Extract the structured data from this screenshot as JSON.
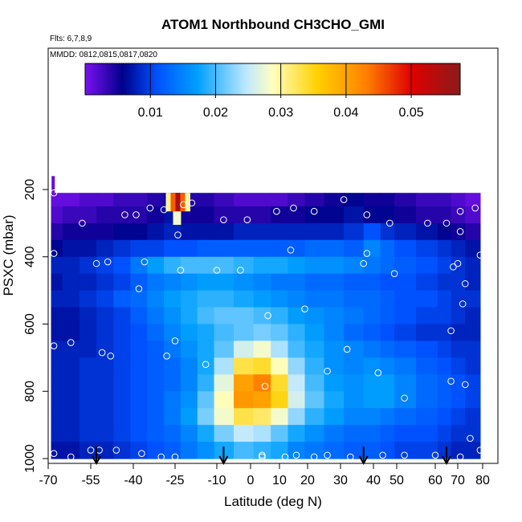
{
  "chart_data": {
    "type": "heatmap",
    "title": "ATOM1 Northbound CH3CHO_GMI",
    "flights_label": "Flts: 6,7,8,9",
    "dates_label": "MMDD: 0812,0815,0817,0820",
    "xlabel": "Latitude (deg N)",
    "ylabel": "PSXC (mbar)",
    "xlim": [
      -70,
      80
    ],
    "ylim": [
      1000,
      160
    ],
    "y_reversed": true,
    "xticks": [
      -70,
      -55,
      -40,
      -25,
      -10,
      0,
      10,
      20,
      30,
      40,
      50,
      60,
      70,
      80
    ],
    "xtick_labels": [
      "-70",
      "-55",
      "-40",
      "-25",
      "-10",
      "0",
      "10",
      "20",
      "30",
      "40",
      "50",
      "60",
      "70",
      "80"
    ],
    "yticks": [
      200,
      400,
      600,
      800,
      1000
    ],
    "ytick_labels": [
      "200",
      "400",
      "600",
      "800",
      "1000"
    ],
    "colorbar": {
      "min": 0.0,
      "max": 0.0575,
      "ticks": [
        0.01,
        0.02,
        0.03,
        0.04,
        0.05
      ],
      "tick_labels": [
        "0.01",
        "0.02",
        "0.03",
        "0.04",
        "0.05"
      ],
      "colors": [
        "#7a10f0",
        "#00008b",
        "#0050ff",
        "#00a0ff",
        "#bfe8ff",
        "#ffffc0",
        "#ffd000",
        "#ff8000",
        "#e00000",
        "#8b1a1a"
      ],
      "stops": [
        0.0,
        0.1,
        0.19,
        0.3,
        0.43,
        0.5,
        0.62,
        0.75,
        0.87,
        1.0
      ]
    },
    "lat_bins": [
      -68,
      -62,
      -56,
      -50,
      -44,
      -38,
      -32,
      -26,
      -20,
      -14,
      -8,
      -2,
      4,
      10,
      16,
      22,
      28,
      34,
      40,
      46,
      52,
      58,
      64,
      70,
      76
    ],
    "pressure_levels": [
      225,
      275,
      325,
      375,
      425,
      475,
      525,
      575,
      625,
      675,
      725,
      775,
      825,
      875,
      925,
      975
    ],
    "values": [
      [
        0.001,
        0.001,
        0.002,
        0.002,
        0.003,
        0.003,
        0.004,
        0.006,
        0.004,
        0.004,
        0.003,
        0.002,
        0.002,
        0.002,
        0.003,
        0.004,
        0.005,
        0.006,
        0.005,
        0.005,
        0.004,
        0.003,
        0.003,
        0.002,
        0.001
      ],
      [
        0.002,
        0.003,
        0.003,
        0.004,
        0.004,
        0.004,
        0.005,
        0.007,
        0.005,
        0.005,
        0.004,
        0.004,
        0.004,
        0.005,
        0.005,
        0.006,
        0.006,
        0.007,
        0.006,
        0.006,
        0.005,
        0.004,
        0.004,
        0.003,
        0.002
      ],
      [
        0.004,
        0.005,
        0.005,
        0.005,
        0.006,
        0.006,
        0.007,
        0.008,
        0.007,
        0.007,
        0.007,
        0.008,
        0.008,
        0.008,
        0.008,
        0.008,
        0.008,
        0.009,
        0.011,
        0.009,
        0.008,
        0.007,
        0.006,
        0.005,
        0.004
      ],
      [
        0.006,
        0.007,
        0.007,
        0.008,
        0.009,
        0.01,
        0.01,
        0.011,
        0.011,
        0.012,
        0.012,
        0.012,
        0.012,
        0.012,
        0.012,
        0.013,
        0.013,
        0.012,
        0.015,
        0.013,
        0.011,
        0.01,
        0.009,
        0.008,
        0.007
      ],
      [
        0.008,
        0.008,
        0.009,
        0.01,
        0.011,
        0.014,
        0.017,
        0.019,
        0.02,
        0.02,
        0.02,
        0.019,
        0.018,
        0.018,
        0.017,
        0.016,
        0.016,
        0.015,
        0.014,
        0.013,
        0.012,
        0.011,
        0.01,
        0.009,
        0.008
      ],
      [
        0.007,
        0.008,
        0.008,
        0.009,
        0.01,
        0.012,
        0.014,
        0.015,
        0.016,
        0.017,
        0.017,
        0.016,
        0.015,
        0.014,
        0.014,
        0.013,
        0.013,
        0.012,
        0.012,
        0.011,
        0.011,
        0.01,
        0.009,
        0.009,
        0.008
      ],
      [
        0.008,
        0.008,
        0.009,
        0.01,
        0.012,
        0.013,
        0.015,
        0.017,
        0.018,
        0.019,
        0.019,
        0.018,
        0.017,
        0.016,
        0.015,
        0.014,
        0.014,
        0.013,
        0.013,
        0.012,
        0.011,
        0.011,
        0.01,
        0.009,
        0.009
      ],
      [
        0.007,
        0.007,
        0.008,
        0.009,
        0.01,
        0.012,
        0.014,
        0.016,
        0.018,
        0.02,
        0.021,
        0.021,
        0.02,
        0.019,
        0.017,
        0.016,
        0.015,
        0.014,
        0.013,
        0.012,
        0.011,
        0.01,
        0.01,
        0.009,
        0.008
      ],
      [
        0.007,
        0.007,
        0.008,
        0.009,
        0.01,
        0.011,
        0.013,
        0.015,
        0.017,
        0.018,
        0.02,
        0.021,
        0.022,
        0.021,
        0.019,
        0.017,
        0.015,
        0.013,
        0.012,
        0.011,
        0.01,
        0.009,
        0.009,
        0.008,
        0.008
      ],
      [
        0.008,
        0.008,
        0.008,
        0.009,
        0.01,
        0.011,
        0.012,
        0.014,
        0.016,
        0.018,
        0.021,
        0.026,
        0.028,
        0.024,
        0.02,
        0.018,
        0.016,
        0.015,
        0.014,
        0.013,
        0.012,
        0.011,
        0.01,
        0.009,
        0.009
      ],
      [
        0.008,
        0.008,
        0.009,
        0.009,
        0.01,
        0.011,
        0.012,
        0.013,
        0.015,
        0.018,
        0.024,
        0.033,
        0.034,
        0.029,
        0.023,
        0.019,
        0.016,
        0.015,
        0.016,
        0.015,
        0.014,
        0.012,
        0.011,
        0.01,
        0.009
      ],
      [
        0.008,
        0.008,
        0.009,
        0.009,
        0.01,
        0.011,
        0.012,
        0.013,
        0.015,
        0.019,
        0.027,
        0.04,
        0.043,
        0.034,
        0.025,
        0.02,
        0.017,
        0.016,
        0.017,
        0.017,
        0.015,
        0.013,
        0.012,
        0.011,
        0.01
      ],
      [
        0.008,
        0.008,
        0.009,
        0.009,
        0.01,
        0.011,
        0.012,
        0.014,
        0.016,
        0.021,
        0.029,
        0.041,
        0.04,
        0.035,
        0.026,
        0.021,
        0.018,
        0.016,
        0.017,
        0.017,
        0.015,
        0.013,
        0.012,
        0.011,
        0.01
      ],
      [
        0.008,
        0.008,
        0.009,
        0.009,
        0.01,
        0.011,
        0.012,
        0.014,
        0.017,
        0.022,
        0.028,
        0.033,
        0.032,
        0.028,
        0.023,
        0.019,
        0.017,
        0.015,
        0.015,
        0.014,
        0.013,
        0.012,
        0.011,
        0.01,
        0.009
      ],
      [
        0.008,
        0.008,
        0.009,
        0.009,
        0.01,
        0.011,
        0.012,
        0.013,
        0.015,
        0.018,
        0.022,
        0.025,
        0.024,
        0.021,
        0.018,
        0.016,
        0.014,
        0.013,
        0.013,
        0.012,
        0.011,
        0.011,
        0.01,
        0.009,
        0.009
      ],
      [
        0.007,
        0.007,
        0.008,
        0.008,
        0.009,
        0.01,
        0.011,
        0.012,
        0.014,
        0.016,
        0.018,
        0.02,
        0.019,
        0.018,
        0.015,
        0.014,
        0.013,
        0.012,
        0.012,
        0.011,
        0.01,
        0.01,
        0.009,
        0.008,
        0.008
      ]
    ],
    "hotspot": {
      "lat": -24,
      "pressure_range": [
        210,
        265
      ],
      "value": 0.055
    },
    "samples": [
      [
        -68,
        210
      ],
      [
        -68,
        390
      ],
      [
        -68,
        665
      ],
      [
        -68,
        985
      ],
      [
        -62,
        995
      ],
      [
        -62,
        655
      ],
      [
        -58,
        300
      ],
      [
        -55,
        975
      ],
      [
        -51,
        685
      ],
      [
        -52,
        975
      ],
      [
        -53,
        420
      ],
      [
        -49,
        415
      ],
      [
        -48,
        695
      ],
      [
        -46,
        975
      ],
      [
        -43,
        275
      ],
      [
        -39,
        275
      ],
      [
        -38,
        495
      ],
      [
        -37,
        985
      ],
      [
        -36,
        415
      ],
      [
        -34,
        255
      ],
      [
        -30,
        995
      ],
      [
        -29,
        260
      ],
      [
        -28,
        695
      ],
      [
        -25,
        995
      ],
      [
        -25,
        650
      ],
      [
        -24,
        335
      ],
      [
        -23,
        440
      ],
      [
        -22,
        245
      ],
      [
        -19,
        240
      ],
      [
        -14,
        720
      ],
      [
        -10,
        440
      ],
      [
        -8,
        290
      ],
      [
        -3,
        440
      ],
      [
        -1,
        290
      ],
      [
        4,
        995
      ],
      [
        4,
        990
      ],
      [
        5,
        785
      ],
      [
        6,
        575
      ],
      [
        9,
        265
      ],
      [
        12,
        995
      ],
      [
        14,
        380
      ],
      [
        15,
        255
      ],
      [
        16,
        990
      ],
      [
        19,
        555
      ],
      [
        22,
        265
      ],
      [
        22,
        995
      ],
      [
        26,
        740
      ],
      [
        26,
        990
      ],
      [
        31,
        230
      ],
      [
        32,
        675
      ],
      [
        33,
        995
      ],
      [
        37,
        420
      ],
      [
        38,
        390
      ],
      [
        38,
        275
      ],
      [
        42,
        745
      ],
      [
        44,
        990
      ],
      [
        47,
        300
      ],
      [
        49,
        450
      ],
      [
        52,
        820
      ],
      [
        52,
        990
      ],
      [
        58,
        300
      ],
      [
        60,
        990
      ],
      [
        65,
        300
      ],
      [
        67,
        620
      ],
      [
        67,
        770
      ],
      [
        68,
        430
      ],
      [
        70,
        420
      ],
      [
        71,
        995
      ],
      [
        71,
        325
      ],
      [
        72,
        540
      ],
      [
        73,
        480
      ],
      [
        73,
        780
      ],
      [
        75,
        940
      ],
      [
        77,
        255
      ],
      [
        79,
        395
      ],
      [
        79,
        975
      ],
      [
        71,
        265
      ]
    ],
    "arrows_lat": [
      -53,
      -8,
      37,
      65
    ],
    "grid": false,
    "legend": "colorbar-top"
  }
}
